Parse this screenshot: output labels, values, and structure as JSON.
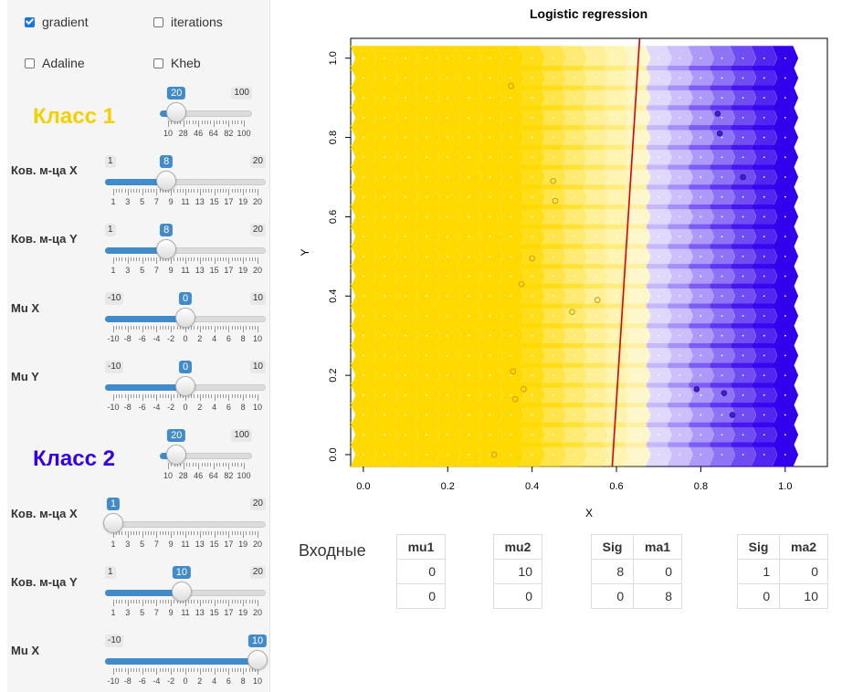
{
  "checkboxes": [
    {
      "label": "gradient",
      "checked": true
    },
    {
      "label": "iterations",
      "checked": false
    },
    {
      "label": "Adaline",
      "checked": false
    },
    {
      "label": "Kheb",
      "checked": false
    }
  ],
  "class1": {
    "title": "Класс 1",
    "color": "#f5d000",
    "count": {
      "min": 10,
      "max": 100,
      "value": 20,
      "min_label": "",
      "max_label": "100",
      "ticks": [
        "10",
        "28",
        "46",
        "64",
        "82",
        "100"
      ]
    },
    "cov_x": {
      "label": "Ков. м-ца X",
      "min": 1,
      "max": 20,
      "value": 8,
      "min_label": "1",
      "max_label": "20",
      "ticks": [
        "1",
        "3",
        "5",
        "7",
        "9",
        "11",
        "13",
        "15",
        "17",
        "19",
        "20"
      ]
    },
    "cov_y": {
      "label": "Ков. м-ца Y",
      "min": 1,
      "max": 20,
      "value": 8,
      "min_label": "1",
      "max_label": "20",
      "ticks": [
        "1",
        "3",
        "5",
        "7",
        "9",
        "11",
        "13",
        "15",
        "17",
        "19",
        "20"
      ]
    },
    "mu_x": {
      "label": "Mu X",
      "min": -10,
      "max": 10,
      "value": 0,
      "min_label": "-10",
      "max_label": "10",
      "ticks": [
        "-10",
        "-8",
        "-6",
        "-4",
        "-2",
        "0",
        "2",
        "4",
        "6",
        "8",
        "10"
      ]
    },
    "mu_y": {
      "label": "Mu Y",
      "min": -10,
      "max": 10,
      "value": 0,
      "min_label": "-10",
      "max_label": "10",
      "ticks": [
        "-10",
        "-8",
        "-6",
        "-4",
        "-2",
        "0",
        "2",
        "4",
        "6",
        "8",
        "10"
      ]
    }
  },
  "class2": {
    "title": "Класс 2",
    "color": "#3300ee",
    "count": {
      "min": 10,
      "max": 100,
      "value": 20,
      "min_label": "",
      "max_label": "100",
      "ticks": [
        "10",
        "28",
        "46",
        "64",
        "82",
        "100"
      ]
    },
    "cov_x": {
      "label": "Ков. м-ца X",
      "min": 1,
      "max": 20,
      "value": 1,
      "min_label": "",
      "max_label": "20",
      "ticks": [
        "1",
        "3",
        "5",
        "7",
        "9",
        "11",
        "13",
        "15",
        "17",
        "19",
        "20"
      ]
    },
    "cov_y": {
      "label": "Ков. м-ца Y",
      "min": 1,
      "max": 20,
      "value": 10,
      "min_label": "1",
      "max_label": "20",
      "ticks": [
        "1",
        "3",
        "5",
        "7",
        "9",
        "11",
        "13",
        "15",
        "17",
        "19",
        "20"
      ]
    },
    "mu_x": {
      "label": "Mu X",
      "min": -10,
      "max": 10,
      "value": 10,
      "min_label": "-10",
      "max_label": "",
      "ticks": [
        "-10",
        "-8",
        "-6",
        "-4",
        "-2",
        "0",
        "2",
        "4",
        "6",
        "8",
        "10"
      ]
    }
  },
  "chart_data": {
    "type": "heatmap",
    "title": "Logistic regression",
    "xlabel": "X",
    "ylabel": "Y",
    "xlim": [
      -0.03,
      1.1
    ],
    "ylim": [
      -0.03,
      1.05
    ],
    "xticks": [
      "0.0",
      "0.2",
      "0.4",
      "0.6",
      "0.8",
      "1.0"
    ],
    "yticks": [
      "0.0",
      "0.2",
      "0.4",
      "0.6",
      "0.8",
      "1.0"
    ],
    "grid_columns": [
      0.0,
      0.05,
      0.1,
      0.15,
      0.2,
      0.25,
      0.3,
      0.35,
      0.4,
      0.45,
      0.5,
      0.55,
      0.6,
      0.65,
      0.7,
      0.75,
      0.8,
      0.85,
      0.9,
      0.95,
      1.0
    ],
    "grid_rows": [
      0.0,
      0.05,
      0.1,
      0.15,
      0.2,
      0.25,
      0.3,
      0.35,
      0.4,
      0.45,
      0.5,
      0.55,
      0.6,
      0.65,
      0.7,
      0.75,
      0.8,
      0.85,
      0.9,
      0.95,
      1.0
    ],
    "column_class": [
      "c1",
      "c1",
      "c1",
      "c1",
      "c1",
      "c1",
      "c1",
      "c1",
      "c1",
      "c1",
      "c1",
      "c1",
      "c1",
      "c1",
      "c2",
      "c2",
      "c2",
      "c2",
      "c2",
      "c2",
      "c2"
    ],
    "column_strength": [
      1,
      1,
      1,
      1,
      1,
      1,
      1,
      1,
      0.9,
      0.7,
      0.55,
      0.4,
      0.3,
      0.2,
      0.15,
      0.25,
      0.4,
      0.55,
      0.7,
      0.85,
      1
    ],
    "decision_line": {
      "x": [
        0.59,
        0.655
      ],
      "y": [
        -0.03,
        1.05
      ],
      "color": "#dd0000"
    },
    "class1_points": [
      [
        0.35,
        0.93
      ],
      [
        0.45,
        0.69
      ],
      [
        0.455,
        0.64
      ],
      [
        0.4,
        0.495
      ],
      [
        0.375,
        0.43
      ],
      [
        0.555,
        0.39
      ],
      [
        0.495,
        0.36
      ],
      [
        0.355,
        0.21
      ],
      [
        0.38,
        0.165
      ],
      [
        0.36,
        0.14
      ],
      [
        0.31,
        0.0
      ]
    ],
    "class2_points": [
      [
        0.84,
        0.86
      ],
      [
        0.845,
        0.81
      ],
      [
        0.9,
        0.7
      ],
      [
        0.79,
        0.165
      ],
      [
        0.855,
        0.155
      ],
      [
        0.875,
        0.1
      ]
    ],
    "colors": {
      "class1": "#ffd900",
      "class2": "#3300ee"
    }
  },
  "input_section": {
    "label": "Входные",
    "mu1": {
      "header": "mu1",
      "rows": [
        "0",
        "0"
      ]
    },
    "mu2": {
      "header": "mu2",
      "rows": [
        "10",
        "0"
      ]
    },
    "sig1": {
      "headers": [
        "Sig",
        "ma1"
      ],
      "rows": [
        [
          "8",
          "0"
        ],
        [
          "0",
          "8"
        ]
      ]
    },
    "sig2": {
      "headers": [
        "Sig",
        "ma2"
      ],
      "rows": [
        [
          "1",
          "0"
        ],
        [
          "0",
          "10"
        ]
      ]
    }
  }
}
